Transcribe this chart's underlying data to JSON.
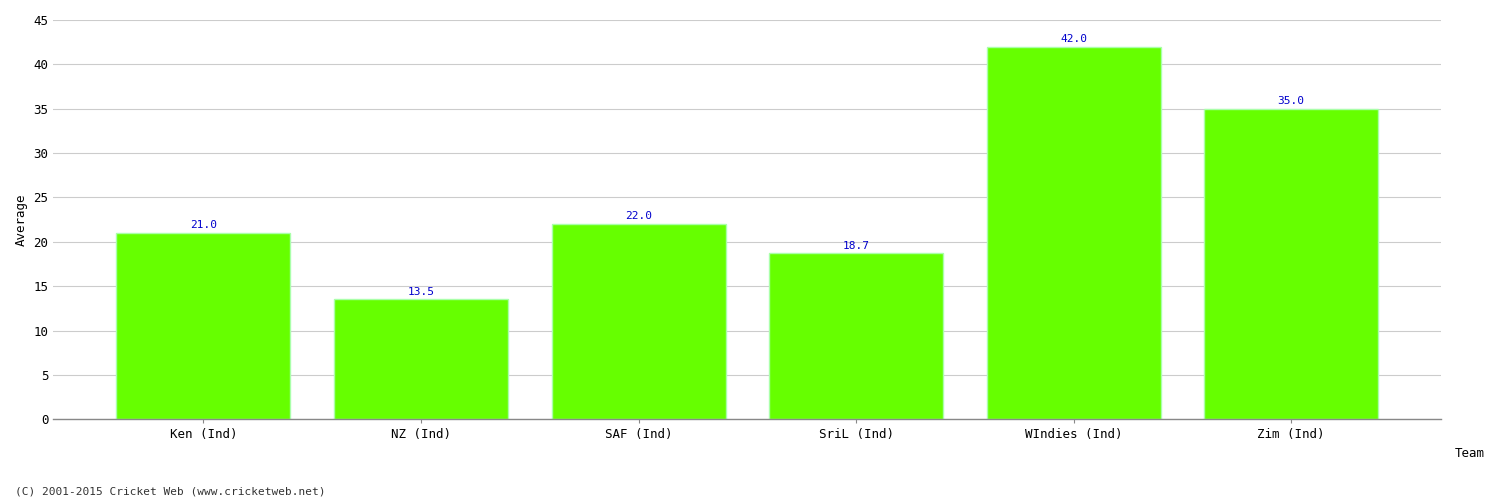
{
  "categories": [
    "Ken (Ind)",
    "NZ (Ind)",
    "SAF (Ind)",
    "SriL (Ind)",
    "WIndies (Ind)",
    "Zim (Ind)"
  ],
  "values": [
    21.0,
    13.5,
    22.0,
    18.7,
    42.0,
    35.0
  ],
  "bar_color": "#66ff00",
  "bar_edge_color": "#aaffaa",
  "label_color": "#0000cc",
  "xlabel": "Team",
  "ylabel": "Average",
  "ylim": [
    0,
    45
  ],
  "yticks": [
    0,
    5,
    10,
    15,
    20,
    25,
    30,
    35,
    40,
    45
  ],
  "grid_color": "#cccccc",
  "bg_color": "#ffffff",
  "label_fontsize": 8,
  "axis_fontsize": 9,
  "xlabel_fontsize": 9,
  "ylabel_fontsize": 9,
  "footnote": "(C) 2001-2015 Cricket Web (www.cricketweb.net)"
}
